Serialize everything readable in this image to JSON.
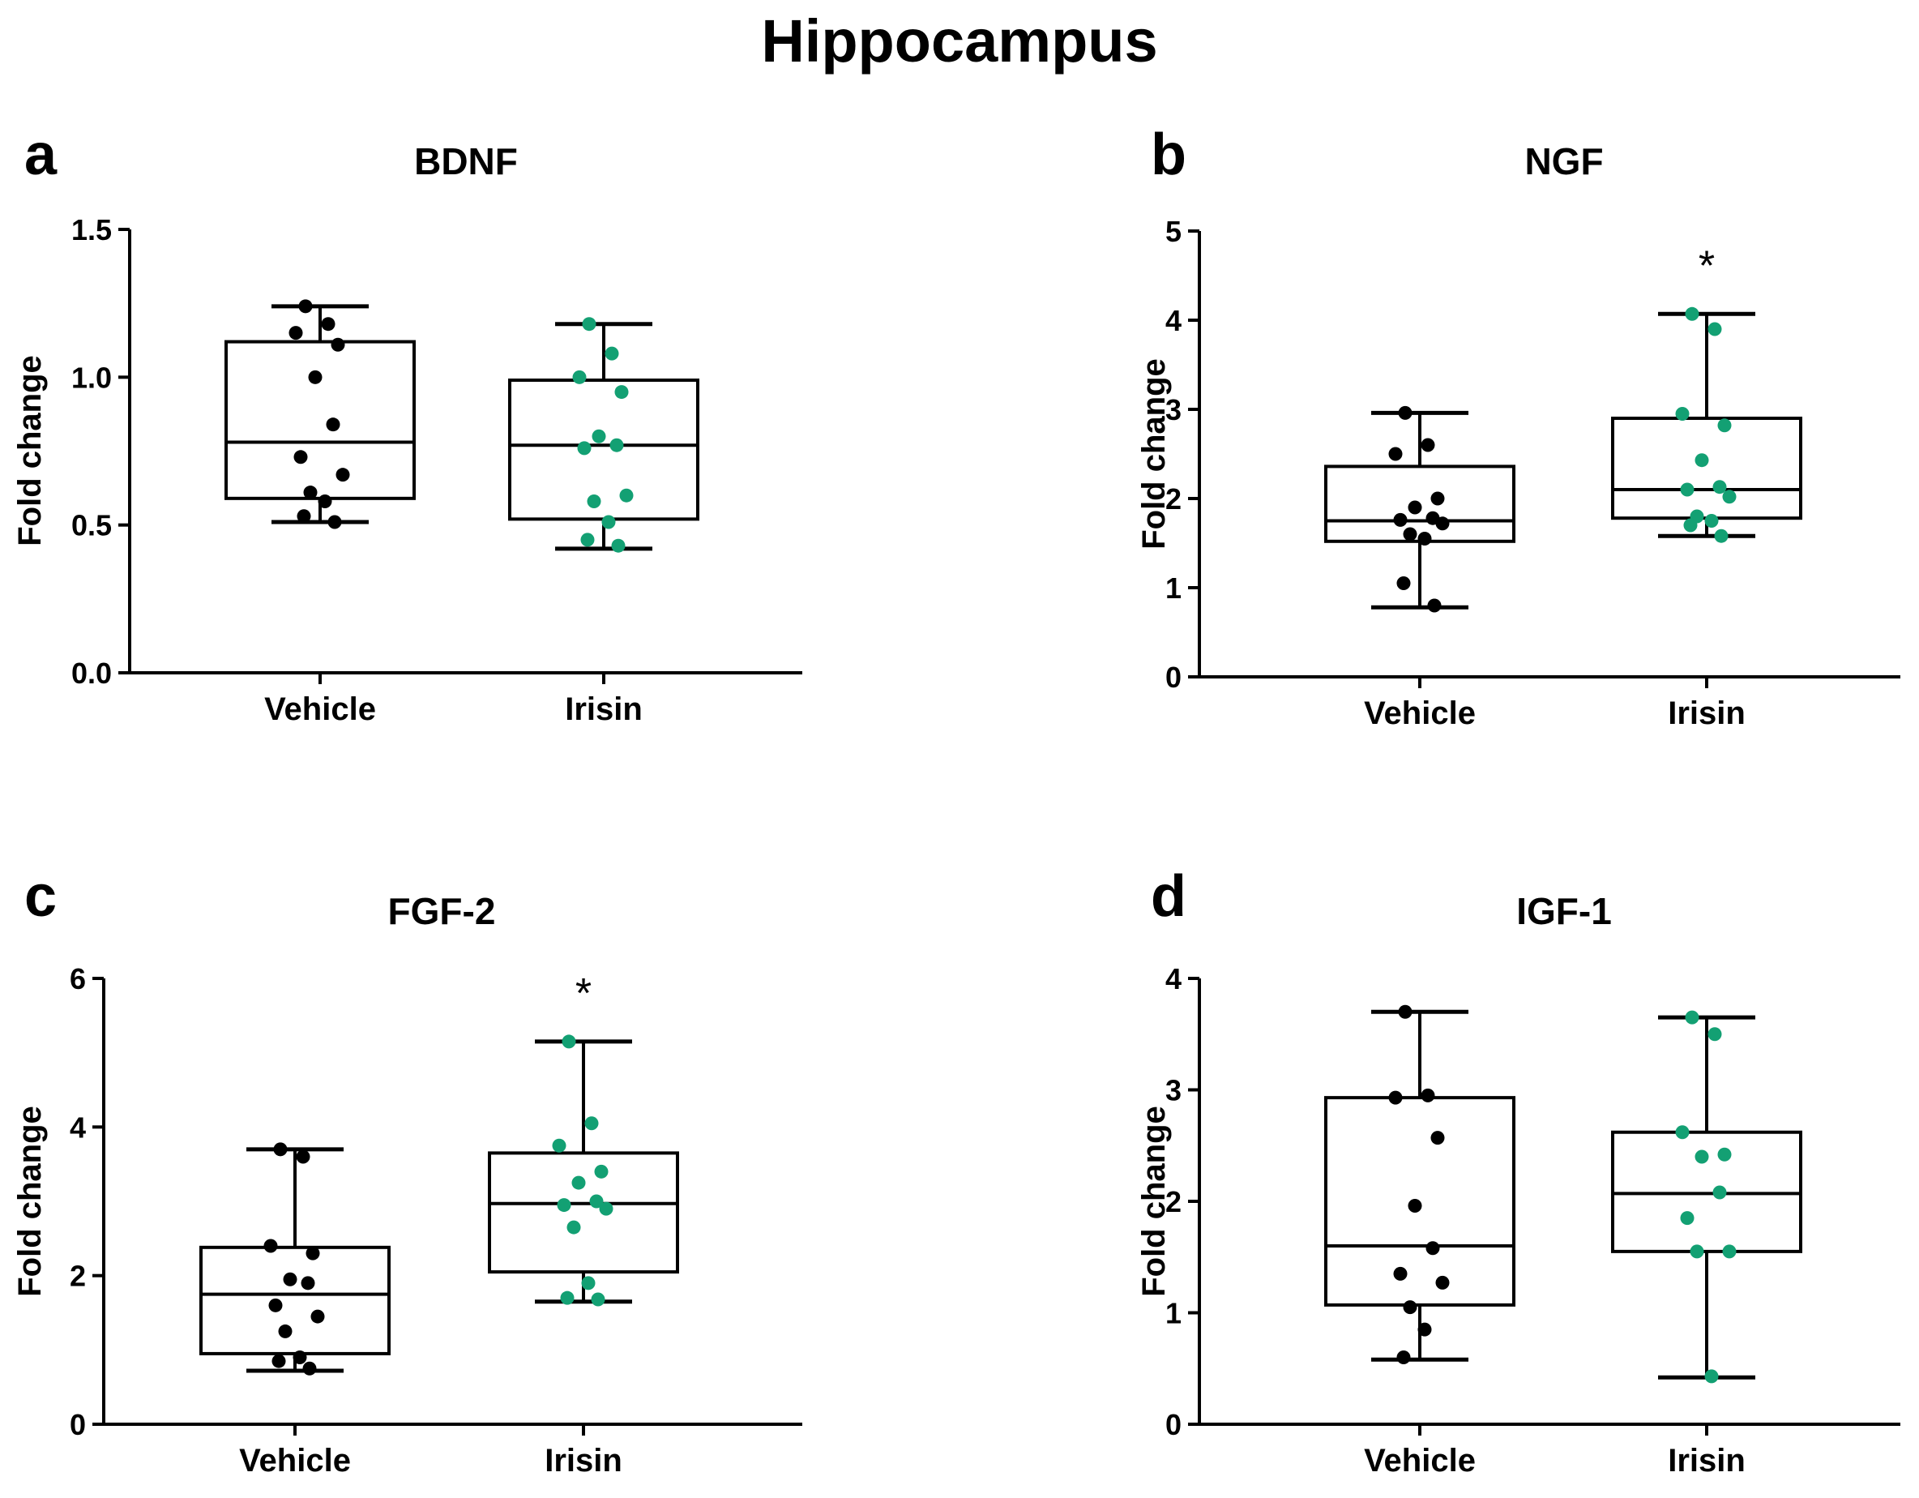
{
  "figure_title": "Hippocampus",
  "colors": {
    "vehicle": "#000000",
    "irisin": "#13a073"
  },
  "chart_data": [
    {
      "type": "box",
      "panel_letter": "a",
      "title": "BDNF",
      "ylabel": "Fold change",
      "ylim": [
        0,
        1.5
      ],
      "yticks": [
        "0.0",
        "0.5",
        "1.0",
        "1.5"
      ],
      "categories": [
        "Vehicle",
        "Irisin"
      ],
      "significance": [
        "",
        ""
      ],
      "series": [
        {
          "name": "Vehicle",
          "color": "#000000",
          "box": {
            "min": 0.51,
            "q1": 0.59,
            "median": 0.78,
            "q3": 1.12,
            "max": 1.24
          },
          "points": [
            1.24,
            1.18,
            1.15,
            1.11,
            1.0,
            0.84,
            0.73,
            0.67,
            0.61,
            0.58,
            0.53,
            0.51
          ]
        },
        {
          "name": "Irisin",
          "color": "#13a073",
          "box": {
            "min": 0.42,
            "q1": 0.52,
            "median": 0.77,
            "q3": 0.99,
            "max": 1.18
          },
          "points": [
            1.18,
            1.08,
            1.0,
            0.95,
            0.8,
            0.77,
            0.76,
            0.6,
            0.58,
            0.51,
            0.45,
            0.43
          ]
        }
      ]
    },
    {
      "type": "box",
      "panel_letter": "b",
      "title": "NGF",
      "ylabel": "Fold change",
      "ylim": [
        0,
        5
      ],
      "yticks": [
        "0",
        "1",
        "2",
        "3",
        "4",
        "5"
      ],
      "categories": [
        "Vehicle",
        "Irisin"
      ],
      "significance": [
        "",
        "*"
      ],
      "series": [
        {
          "name": "Vehicle",
          "color": "#000000",
          "box": {
            "min": 0.78,
            "q1": 1.52,
            "median": 1.75,
            "q3": 2.36,
            "max": 2.96
          },
          "points": [
            2.96,
            2.6,
            2.5,
            2.0,
            1.9,
            1.78,
            1.76,
            1.72,
            1.6,
            1.55,
            1.05,
            0.8
          ]
        },
        {
          "name": "Irisin",
          "color": "#13a073",
          "box": {
            "min": 1.58,
            "q1": 1.78,
            "median": 2.1,
            "q3": 2.9,
            "max": 4.07
          },
          "points": [
            4.07,
            3.9,
            2.95,
            2.82,
            2.43,
            2.13,
            2.1,
            2.02,
            1.8,
            1.75,
            1.7,
            1.58
          ]
        }
      ]
    },
    {
      "type": "box",
      "panel_letter": "c",
      "title": "FGF-2",
      "ylabel": "Fold change",
      "ylim": [
        0,
        6
      ],
      "yticks": [
        "0",
        "2",
        "4",
        "6"
      ],
      "categories": [
        "Vehicle",
        "Irisin"
      ],
      "significance": [
        "",
        "*"
      ],
      "series": [
        {
          "name": "Vehicle",
          "color": "#000000",
          "box": {
            "min": 0.72,
            "q1": 0.95,
            "median": 1.75,
            "q3": 2.38,
            "max": 3.7
          },
          "points": [
            3.7,
            3.6,
            2.4,
            2.3,
            1.95,
            1.9,
            1.6,
            1.45,
            1.25,
            0.9,
            0.85,
            0.75
          ]
        },
        {
          "name": "Irisin",
          "color": "#13a073",
          "box": {
            "min": 1.65,
            "q1": 2.05,
            "median": 2.97,
            "q3": 3.65,
            "max": 5.15
          },
          "points": [
            5.15,
            4.05,
            3.75,
            3.4,
            3.25,
            3.0,
            2.95,
            2.9,
            2.65,
            1.9,
            1.7,
            1.68
          ]
        }
      ]
    },
    {
      "type": "box",
      "panel_letter": "d",
      "title": "IGF-1",
      "ylabel": "Fold change",
      "ylim": [
        0,
        4
      ],
      "yticks": [
        "0",
        "1",
        "2",
        "3",
        "4"
      ],
      "categories": [
        "Vehicle",
        "Irisin"
      ],
      "significance": [
        "",
        ""
      ],
      "series": [
        {
          "name": "Vehicle",
          "color": "#000000",
          "box": {
            "min": 0.58,
            "q1": 1.07,
            "median": 1.6,
            "q3": 2.93,
            "max": 3.7
          },
          "points": [
            3.7,
            2.95,
            2.93,
            2.57,
            1.96,
            1.58,
            1.35,
            1.27,
            1.05,
            0.85,
            0.6
          ]
        },
        {
          "name": "Irisin",
          "color": "#13a073",
          "box": {
            "min": 0.42,
            "q1": 1.55,
            "median": 2.07,
            "q3": 2.62,
            "max": 3.65
          },
          "points": [
            3.65,
            3.5,
            2.62,
            2.42,
            2.4,
            2.08,
            1.85,
            1.55,
            1.55,
            0.43
          ]
        }
      ]
    }
  ]
}
